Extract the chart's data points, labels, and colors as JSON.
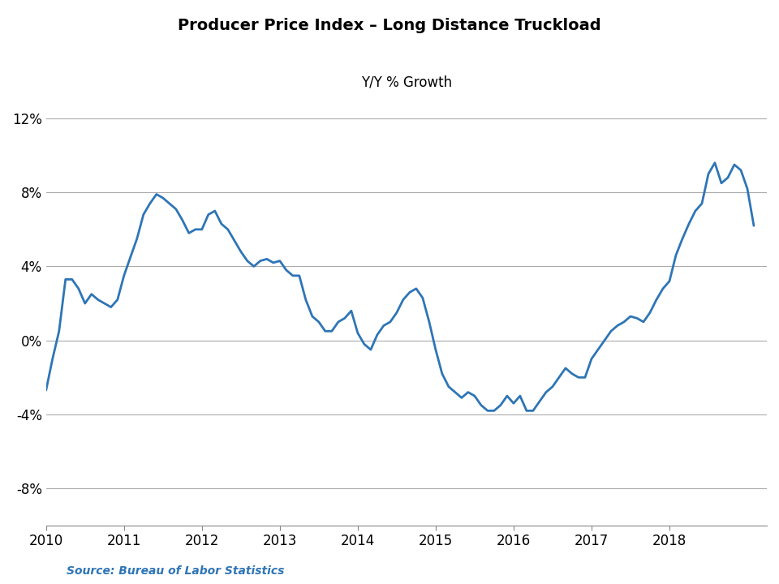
{
  "title": "Producer Price Index – Long Distance Truckload",
  "subtitle": "Y/Y % Growth",
  "source": "Source: Bureau of Labor Statistics",
  "line_color": "#2E75B6",
  "line_width": 2.0,
  "background_color": "#FFFFFF",
  "grid_color": "#AAAAAA",
  "ylim": [
    -0.1,
    0.135
  ],
  "yticks": [
    -0.08,
    -0.04,
    0.0,
    0.04,
    0.08,
    0.12
  ],
  "ytick_labels": [
    "-8%",
    "-4%",
    "0%",
    "4%",
    "8%",
    "12%"
  ],
  "xlim_start": 2010.0,
  "xlim_end": 2019.25,
  "xticks": [
    2010,
    2011,
    2012,
    2013,
    2014,
    2015,
    2016,
    2017,
    2018
  ],
  "data": {
    "dates": [
      2010.0,
      2010.083,
      2010.167,
      2010.25,
      2010.333,
      2010.417,
      2010.5,
      2010.583,
      2010.667,
      2010.75,
      2010.833,
      2010.917,
      2011.0,
      2011.083,
      2011.167,
      2011.25,
      2011.333,
      2011.417,
      2011.5,
      2011.583,
      2011.667,
      2011.75,
      2011.833,
      2011.917,
      2012.0,
      2012.083,
      2012.167,
      2012.25,
      2012.333,
      2012.417,
      2012.5,
      2012.583,
      2012.667,
      2012.75,
      2012.833,
      2012.917,
      2013.0,
      2013.083,
      2013.167,
      2013.25,
      2013.333,
      2013.417,
      2013.5,
      2013.583,
      2013.667,
      2013.75,
      2013.833,
      2013.917,
      2014.0,
      2014.083,
      2014.167,
      2014.25,
      2014.333,
      2014.417,
      2014.5,
      2014.583,
      2014.667,
      2014.75,
      2014.833,
      2014.917,
      2015.0,
      2015.083,
      2015.167,
      2015.25,
      2015.333,
      2015.417,
      2015.5,
      2015.583,
      2015.667,
      2015.75,
      2015.833,
      2015.917,
      2016.0,
      2016.083,
      2016.167,
      2016.25,
      2016.333,
      2016.417,
      2016.5,
      2016.583,
      2016.667,
      2016.75,
      2016.833,
      2016.917,
      2017.0,
      2017.083,
      2017.167,
      2017.25,
      2017.333,
      2017.417,
      2017.5,
      2017.583,
      2017.667,
      2017.75,
      2017.833,
      2017.917,
      2018.0,
      2018.083,
      2018.167,
      2018.25,
      2018.333,
      2018.417,
      2018.5,
      2018.583,
      2018.667,
      2018.75,
      2018.833,
      2018.917,
      2019.0,
      2019.083
    ],
    "values": [
      -0.027,
      -0.01,
      0.005,
      0.033,
      0.033,
      0.028,
      0.02,
      0.025,
      0.022,
      0.02,
      0.018,
      0.022,
      0.035,
      0.045,
      0.055,
      0.068,
      0.074,
      0.079,
      0.077,
      0.074,
      0.071,
      0.065,
      0.058,
      0.06,
      0.06,
      0.068,
      0.07,
      0.063,
      0.06,
      0.054,
      0.048,
      0.043,
      0.04,
      0.043,
      0.044,
      0.042,
      0.043,
      0.038,
      0.035,
      0.035,
      0.022,
      0.013,
      0.01,
      0.005,
      0.005,
      0.01,
      0.012,
      0.016,
      0.004,
      -0.002,
      -0.005,
      0.003,
      0.008,
      0.01,
      0.015,
      0.022,
      0.026,
      0.028,
      0.023,
      0.01,
      -0.005,
      -0.018,
      -0.025,
      -0.028,
      -0.031,
      -0.028,
      -0.03,
      -0.035,
      -0.038,
      -0.038,
      -0.035,
      -0.03,
      -0.034,
      -0.03,
      -0.038,
      -0.038,
      -0.033,
      -0.028,
      -0.025,
      -0.02,
      -0.015,
      -0.018,
      -0.02,
      -0.02,
      -0.01,
      -0.005,
      0.0,
      0.005,
      0.008,
      0.01,
      0.013,
      0.012,
      0.01,
      0.015,
      0.022,
      0.028,
      0.032,
      0.046,
      0.055,
      0.063,
      0.07,
      0.074,
      0.09,
      0.096,
      0.085,
      0.088,
      0.095,
      0.092,
      0.082,
      0.062
    ]
  }
}
